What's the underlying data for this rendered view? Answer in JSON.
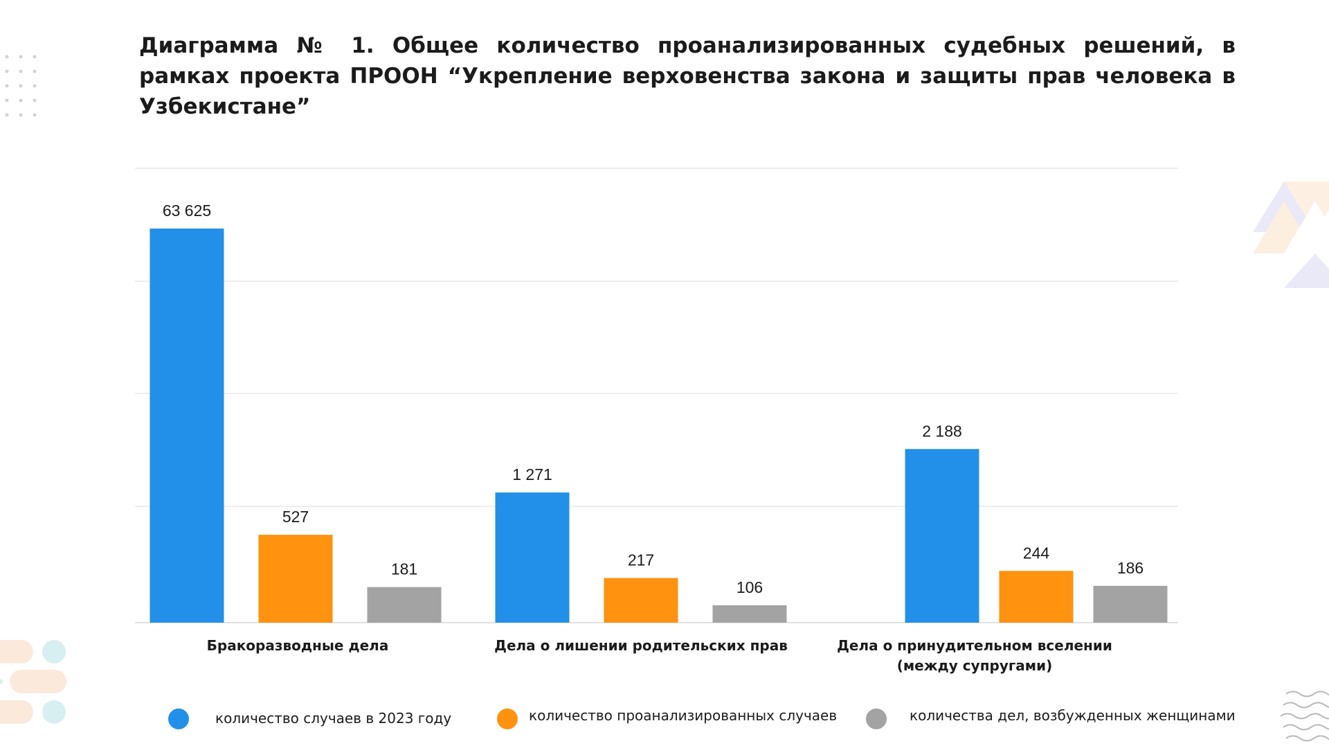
{
  "title": "Диаграмма № 1. Общее количество проанализированных судебных решений, в рамках проекта ПРООН “Укрепление верховенства закона и защиты прав человека в Узбекистане”",
  "colors": {
    "blue": "#2290E8",
    "orange": "#FF920F",
    "gray": "#A3A3A3"
  },
  "chart_data": {
    "type": "bar",
    "title": "Диаграмма № 1. Общее количество проанализированных судебных решений, в рамках проекта ПРООН “Укрепление верховенства закона и защиты прав человека в Узбекистане”",
    "categories": [
      "Бракоразводные дела",
      "Дела о лишении родительских прав",
      "Дела о принудительном вселении (между супругами)"
    ],
    "series": [
      {
        "name": "количество случаев в 2023 году",
        "color": "#2290E8",
        "values": [
          63625,
          1271,
          2188
        ],
        "labels": [
          "63 625",
          "1 271",
          "2 188"
        ]
      },
      {
        "name": "количество проанализированных случаев",
        "color": "#FF920F",
        "values": [
          527,
          217,
          244
        ],
        "labels": [
          "527",
          "217",
          "244"
        ]
      },
      {
        "name": "количества дел, возбужденных женщинами",
        "color": "#A3A3A3",
        "values": [
          181,
          106,
          186
        ],
        "labels": [
          "181",
          "106",
          "186"
        ]
      }
    ],
    "xlabel": "",
    "ylabel": "",
    "y_tick_labels_shown": false,
    "grid": true,
    "legend": "bottom"
  }
}
